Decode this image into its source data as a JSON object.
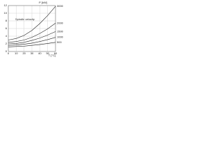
{
  "chart_data": {
    "type": "line",
    "y_label": "P [kW]",
    "x_label": "T [°C]",
    "annotation": "Spindle velocity",
    "x": [
      0,
      10,
      20,
      30,
      40,
      50,
      60
    ],
    "xlim": [
      0,
      60
    ],
    "xticks": [
      0,
      10,
      20,
      30,
      40,
      50,
      60
    ],
    "ylim": [
      0,
      12
    ],
    "yticks": [
      0,
      2,
      4,
      6,
      8,
      10,
      12
    ],
    "grid": true,
    "series": [
      {
        "name": "3000",
        "color": "#222222",
        "values": [
          3.0,
          3.4,
          4.2,
          5.5,
          7.3,
          9.4,
          11.8
        ]
      },
      {
        "name": "2000",
        "color": "#222222",
        "values": [
          2.4,
          2.6,
          3.0,
          3.7,
          4.7,
          5.9,
          7.4
        ]
      },
      {
        "name": "1500",
        "color": "#222222",
        "values": [
          2.0,
          2.1,
          2.4,
          2.9,
          3.5,
          4.3,
          5.2
        ]
      },
      {
        "name": "1000",
        "color": "#222222",
        "values": [
          1.6,
          1.7,
          1.9,
          2.2,
          2.6,
          3.1,
          3.7
        ]
      },
      {
        "name": "500",
        "color": "#222222",
        "values": [
          1.2,
          1.3,
          1.4,
          1.6,
          1.8,
          2.1,
          2.4
        ]
      }
    ]
  }
}
